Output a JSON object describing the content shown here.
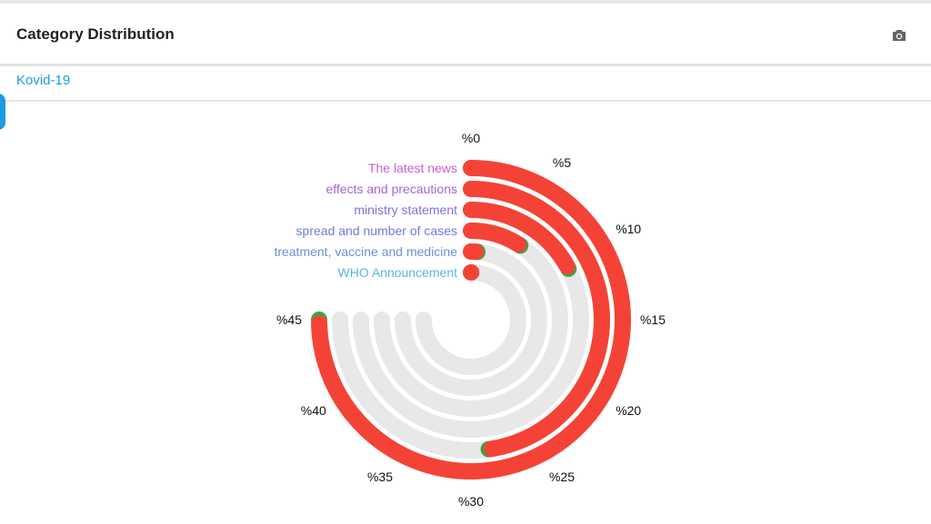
{
  "header": {
    "title": "Category Distribution",
    "camera_icon": "camera-icon"
  },
  "tabs": [
    {
      "label": "Kovid-19"
    }
  ],
  "colors": {
    "bar": "#f44336",
    "bar_tip": "#43a047",
    "track": "#e8e8e8",
    "link": "#1a9ce0"
  },
  "chart_data": {
    "type": "radialBar",
    "categories": [
      "The latest news",
      "effects and precautions",
      "ministry statement",
      "spread and number of cases",
      "treatment, vaccine and medicine",
      "WHO Announcement"
    ],
    "category_colors": [
      "#cc5fd3",
      "#a463d9",
      "#8a6ce0",
      "#6f7ae0",
      "#6a90dc",
      "#5ab6e2"
    ],
    "values": [
      45,
      28.7,
      10.4,
      5.6,
      0.9,
      0.3
    ],
    "value_unit": "%",
    "range": [
      0,
      45
    ],
    "ticks": [
      "%0",
      "%5",
      "%10",
      "%15",
      "%20",
      "%25",
      "%30",
      "%35",
      "%40",
      "%45"
    ],
    "tick_values": [
      0,
      5,
      10,
      15,
      20,
      25,
      30,
      35,
      40,
      45
    ]
  }
}
